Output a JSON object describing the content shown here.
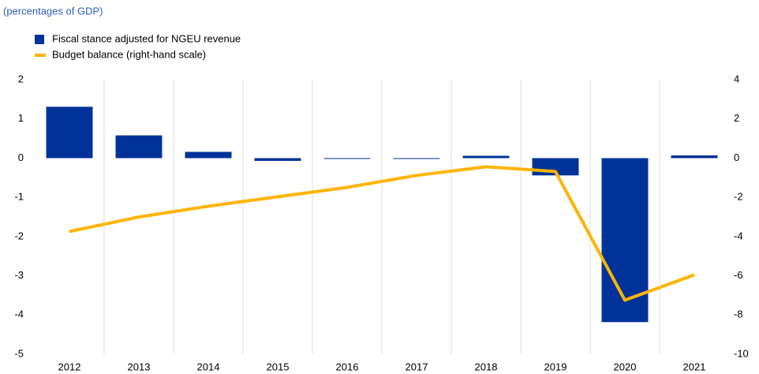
{
  "chart_data": {
    "type": "bar_line",
    "subtitle": "(percentages of GDP)",
    "categories": [
      "2012",
      "2013",
      "2014",
      "2015",
      "2016",
      "2017",
      "2018",
      "2019",
      "2020",
      "2021"
    ],
    "series": [
      {
        "name": "Fiscal stance adjusted for NGEU revenue",
        "type": "bar",
        "color": "#003299",
        "axis": "y",
        "values": [
          1.31,
          0.58,
          0.16,
          -0.07,
          0,
          -0.02,
          0.06,
          -0.44,
          -4.18,
          0.07
        ]
      },
      {
        "name": "Budget balance (right-hand scale)",
        "type": "line",
        "color": "#ffb400",
        "axis": "y2",
        "values": [
          -3.74,
          -3.0,
          -2.45,
          -1.97,
          -1.49,
          -0.88,
          -0.44,
          -0.68,
          -7.24,
          -5.95
        ]
      }
    ],
    "ylim": [
      -5,
      2
    ],
    "yticks": [
      2,
      1,
      0,
      -1,
      -2,
      -3,
      -4,
      -5
    ],
    "y2lim": [
      -10,
      4
    ],
    "y2ticks": [
      4,
      2,
      0,
      -2,
      -4,
      -6,
      -8,
      -10
    ],
    "legend": "top-left"
  }
}
